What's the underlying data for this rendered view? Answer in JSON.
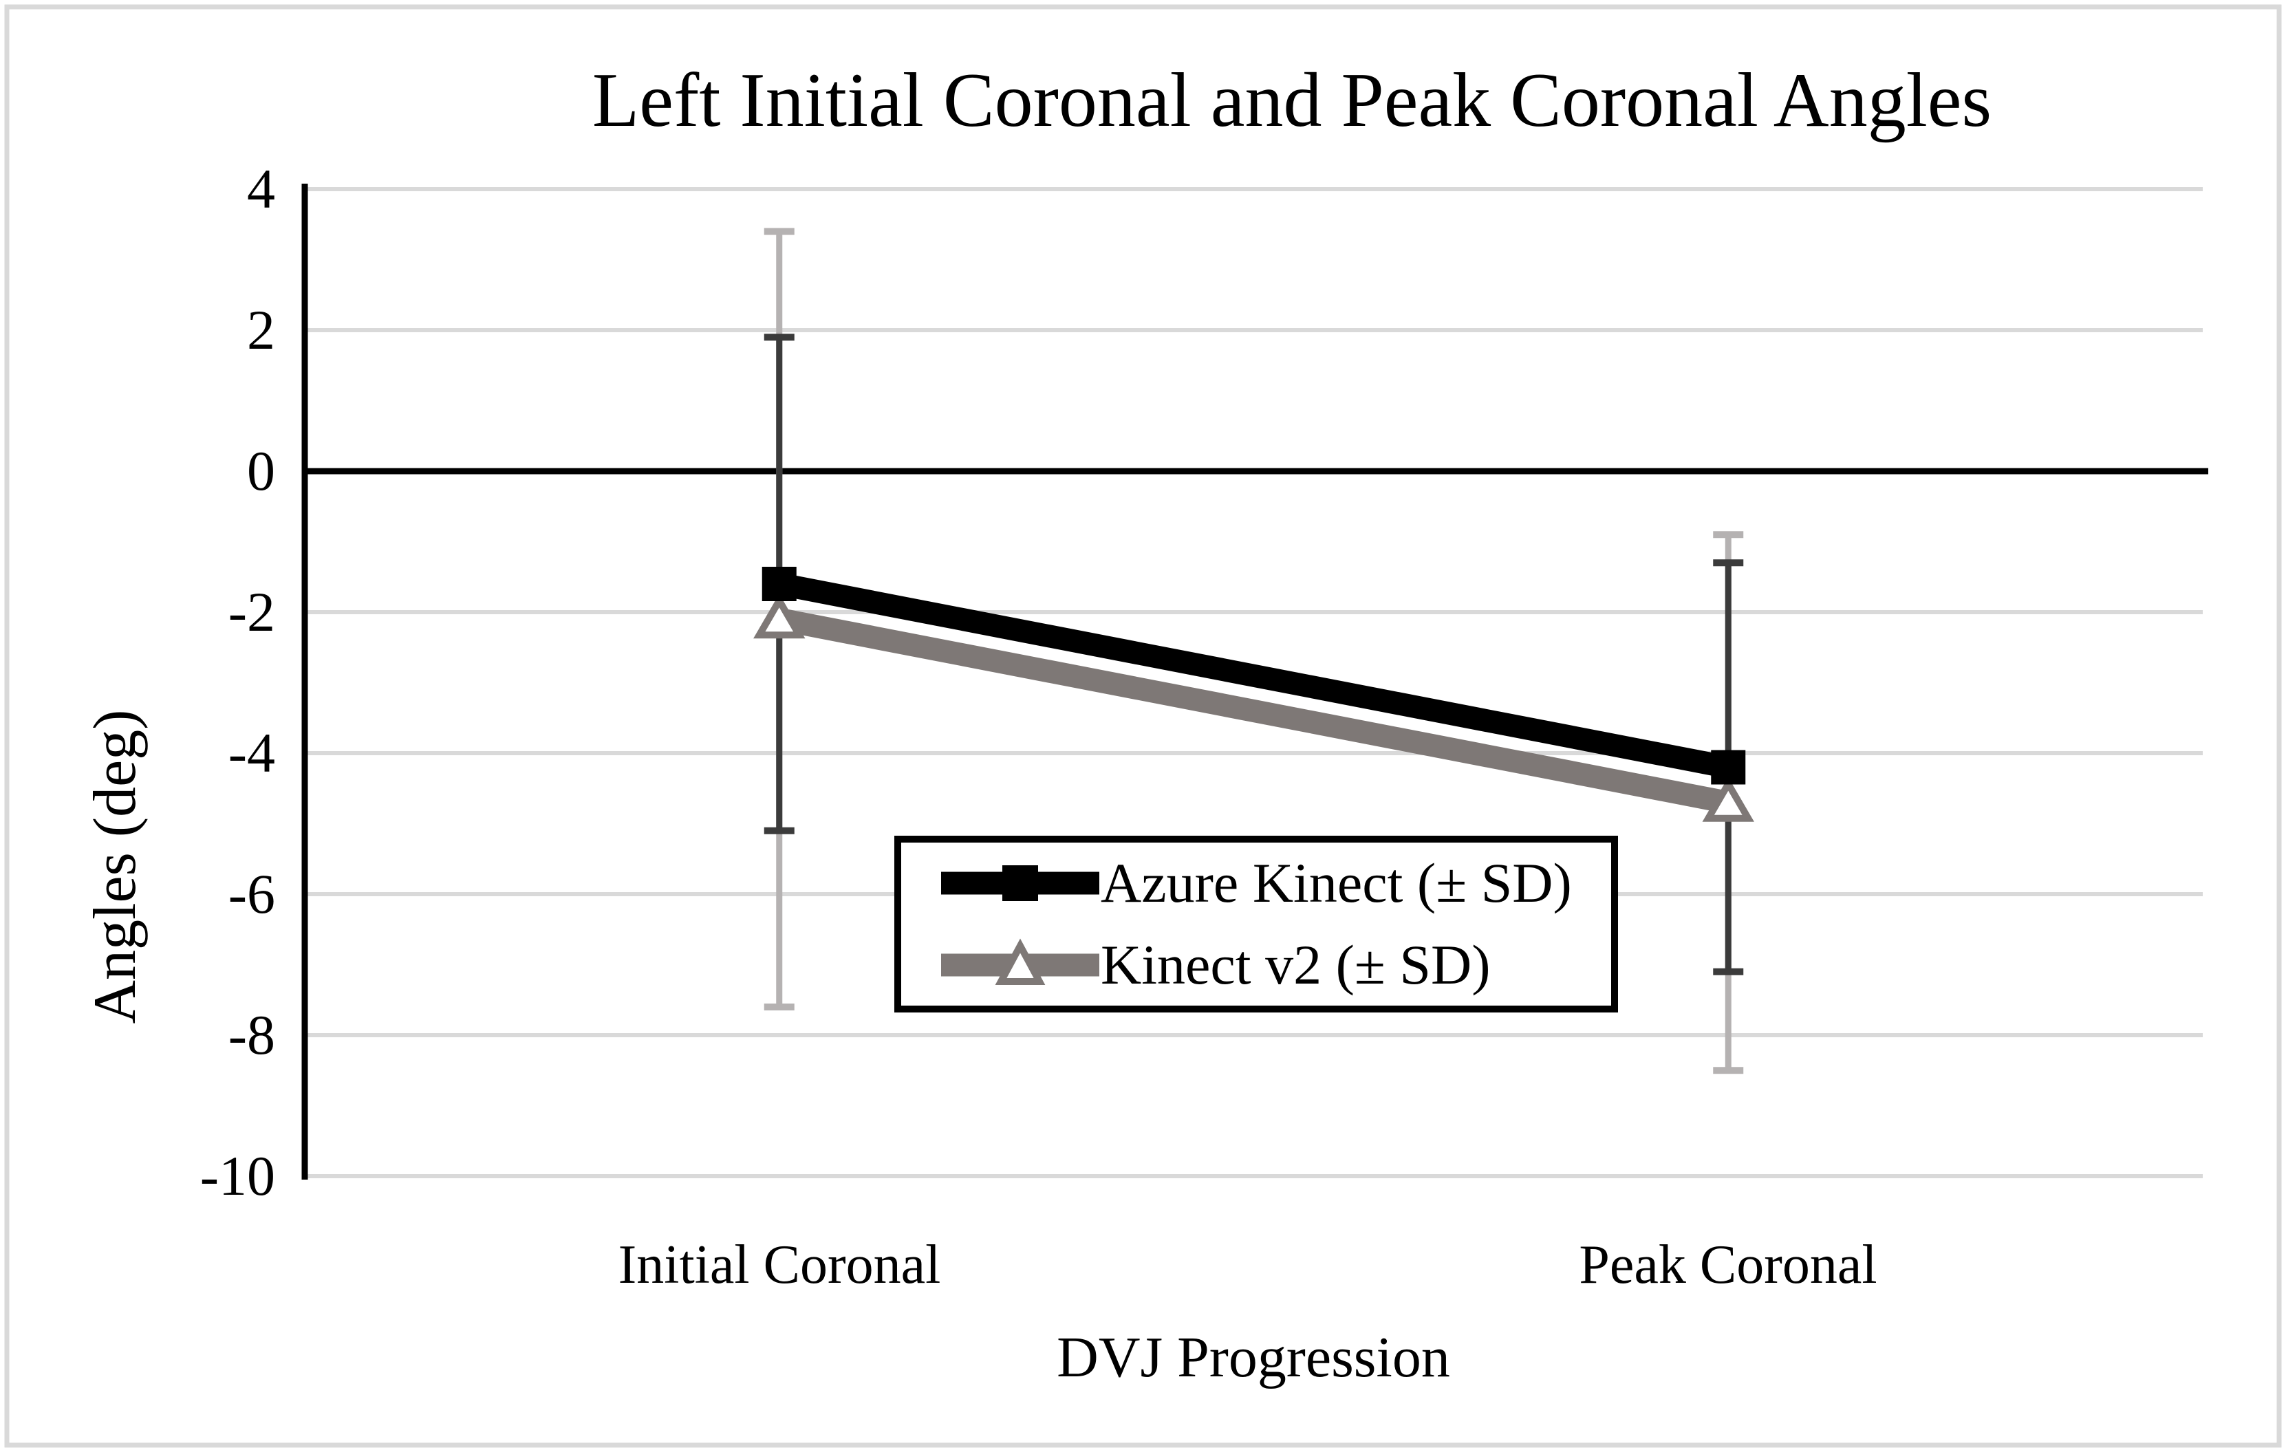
{
  "chart_data": {
    "type": "line",
    "title": "Left Initial Coronal and Peak Coronal Angles",
    "xlabel": "DVJ Progression",
    "ylabel": "Angles (deg)",
    "categories": [
      "Initial Coronal",
      "Peak Coronal"
    ],
    "y_ticks": [
      "4",
      "2",
      "0",
      "-2",
      "-4",
      "-6",
      "-8",
      "-10"
    ],
    "ylim": [
      -10,
      4
    ],
    "grid": true,
    "legend_position": "inside-center-bottom",
    "series": [
      {
        "name": "Azure Kinect (± SD)",
        "values": [
          -1.6,
          -4.2
        ],
        "sd": [
          3.5,
          2.9
        ],
        "color": "#000000",
        "error_color": "#3B3B3B",
        "marker": "filled-square"
      },
      {
        "name": "Kinect v2 (± SD)",
        "values": [
          -2.1,
          -4.7
        ],
        "sd": [
          5.5,
          3.8
        ],
        "color": "#7E7876",
        "error_color": "#B5B2B2",
        "marker": "open-triangle"
      }
    ],
    "colors": {
      "gridline": "#D9D9D9",
      "zero_line": "#000000",
      "y_axis": "#000000",
      "figure_border": "#D9D9D9"
    }
  }
}
